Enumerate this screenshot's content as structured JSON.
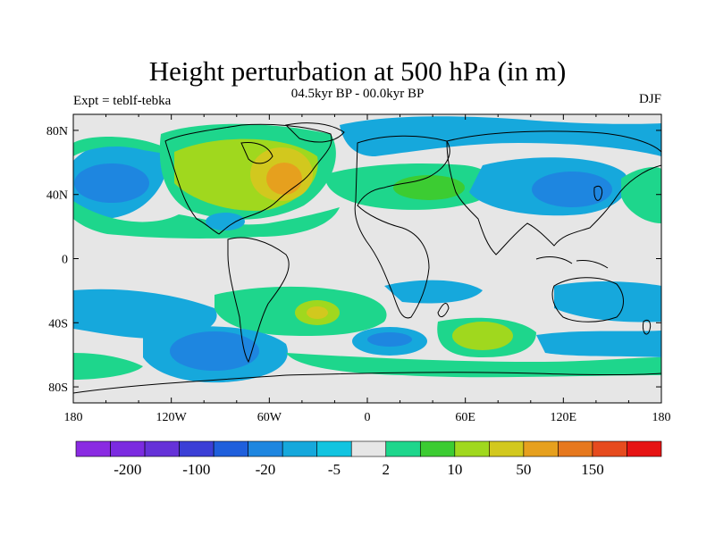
{
  "title": "Height perturbation at 500 hPa (in m)",
  "subtitle": "04.5kyr BP - 00.0kyr BP",
  "left_label": "Expt = teblf-tebka",
  "right_label": "DJF",
  "axes": {
    "lon_ticks": [
      "180",
      "120W",
      "60W",
      "0",
      "60E",
      "120E",
      "180"
    ],
    "lat_ticks": [
      "80N",
      "40N",
      "0",
      "40S",
      "80S"
    ]
  },
  "colorbar": {
    "colors": [
      "#8a2be2",
      "#7b2be0",
      "#6532d8",
      "#3b3fd6",
      "#1f5fdc",
      "#1e86e0",
      "#16a8dc",
      "#12c4e0",
      "#e6e6e6",
      "#1ed68c",
      "#3ccc32",
      "#a0d81e",
      "#d2c81e",
      "#e6a01e",
      "#e6781e",
      "#e64b1e",
      "#e61414"
    ],
    "labels": [
      "-200",
      "-100",
      "-20",
      "-5",
      "2",
      "10",
      "50",
      "150"
    ]
  },
  "colors": {
    "neutral": "#e6e6e6",
    "light_blue": "#16a8dc",
    "blue": "#1e86e0",
    "dark_blue": "#1f5fdc",
    "green": "#1ed68c",
    "yellow_green": "#a0d81e",
    "olive": "#d2c81e",
    "orange": "#e6a01e"
  }
}
